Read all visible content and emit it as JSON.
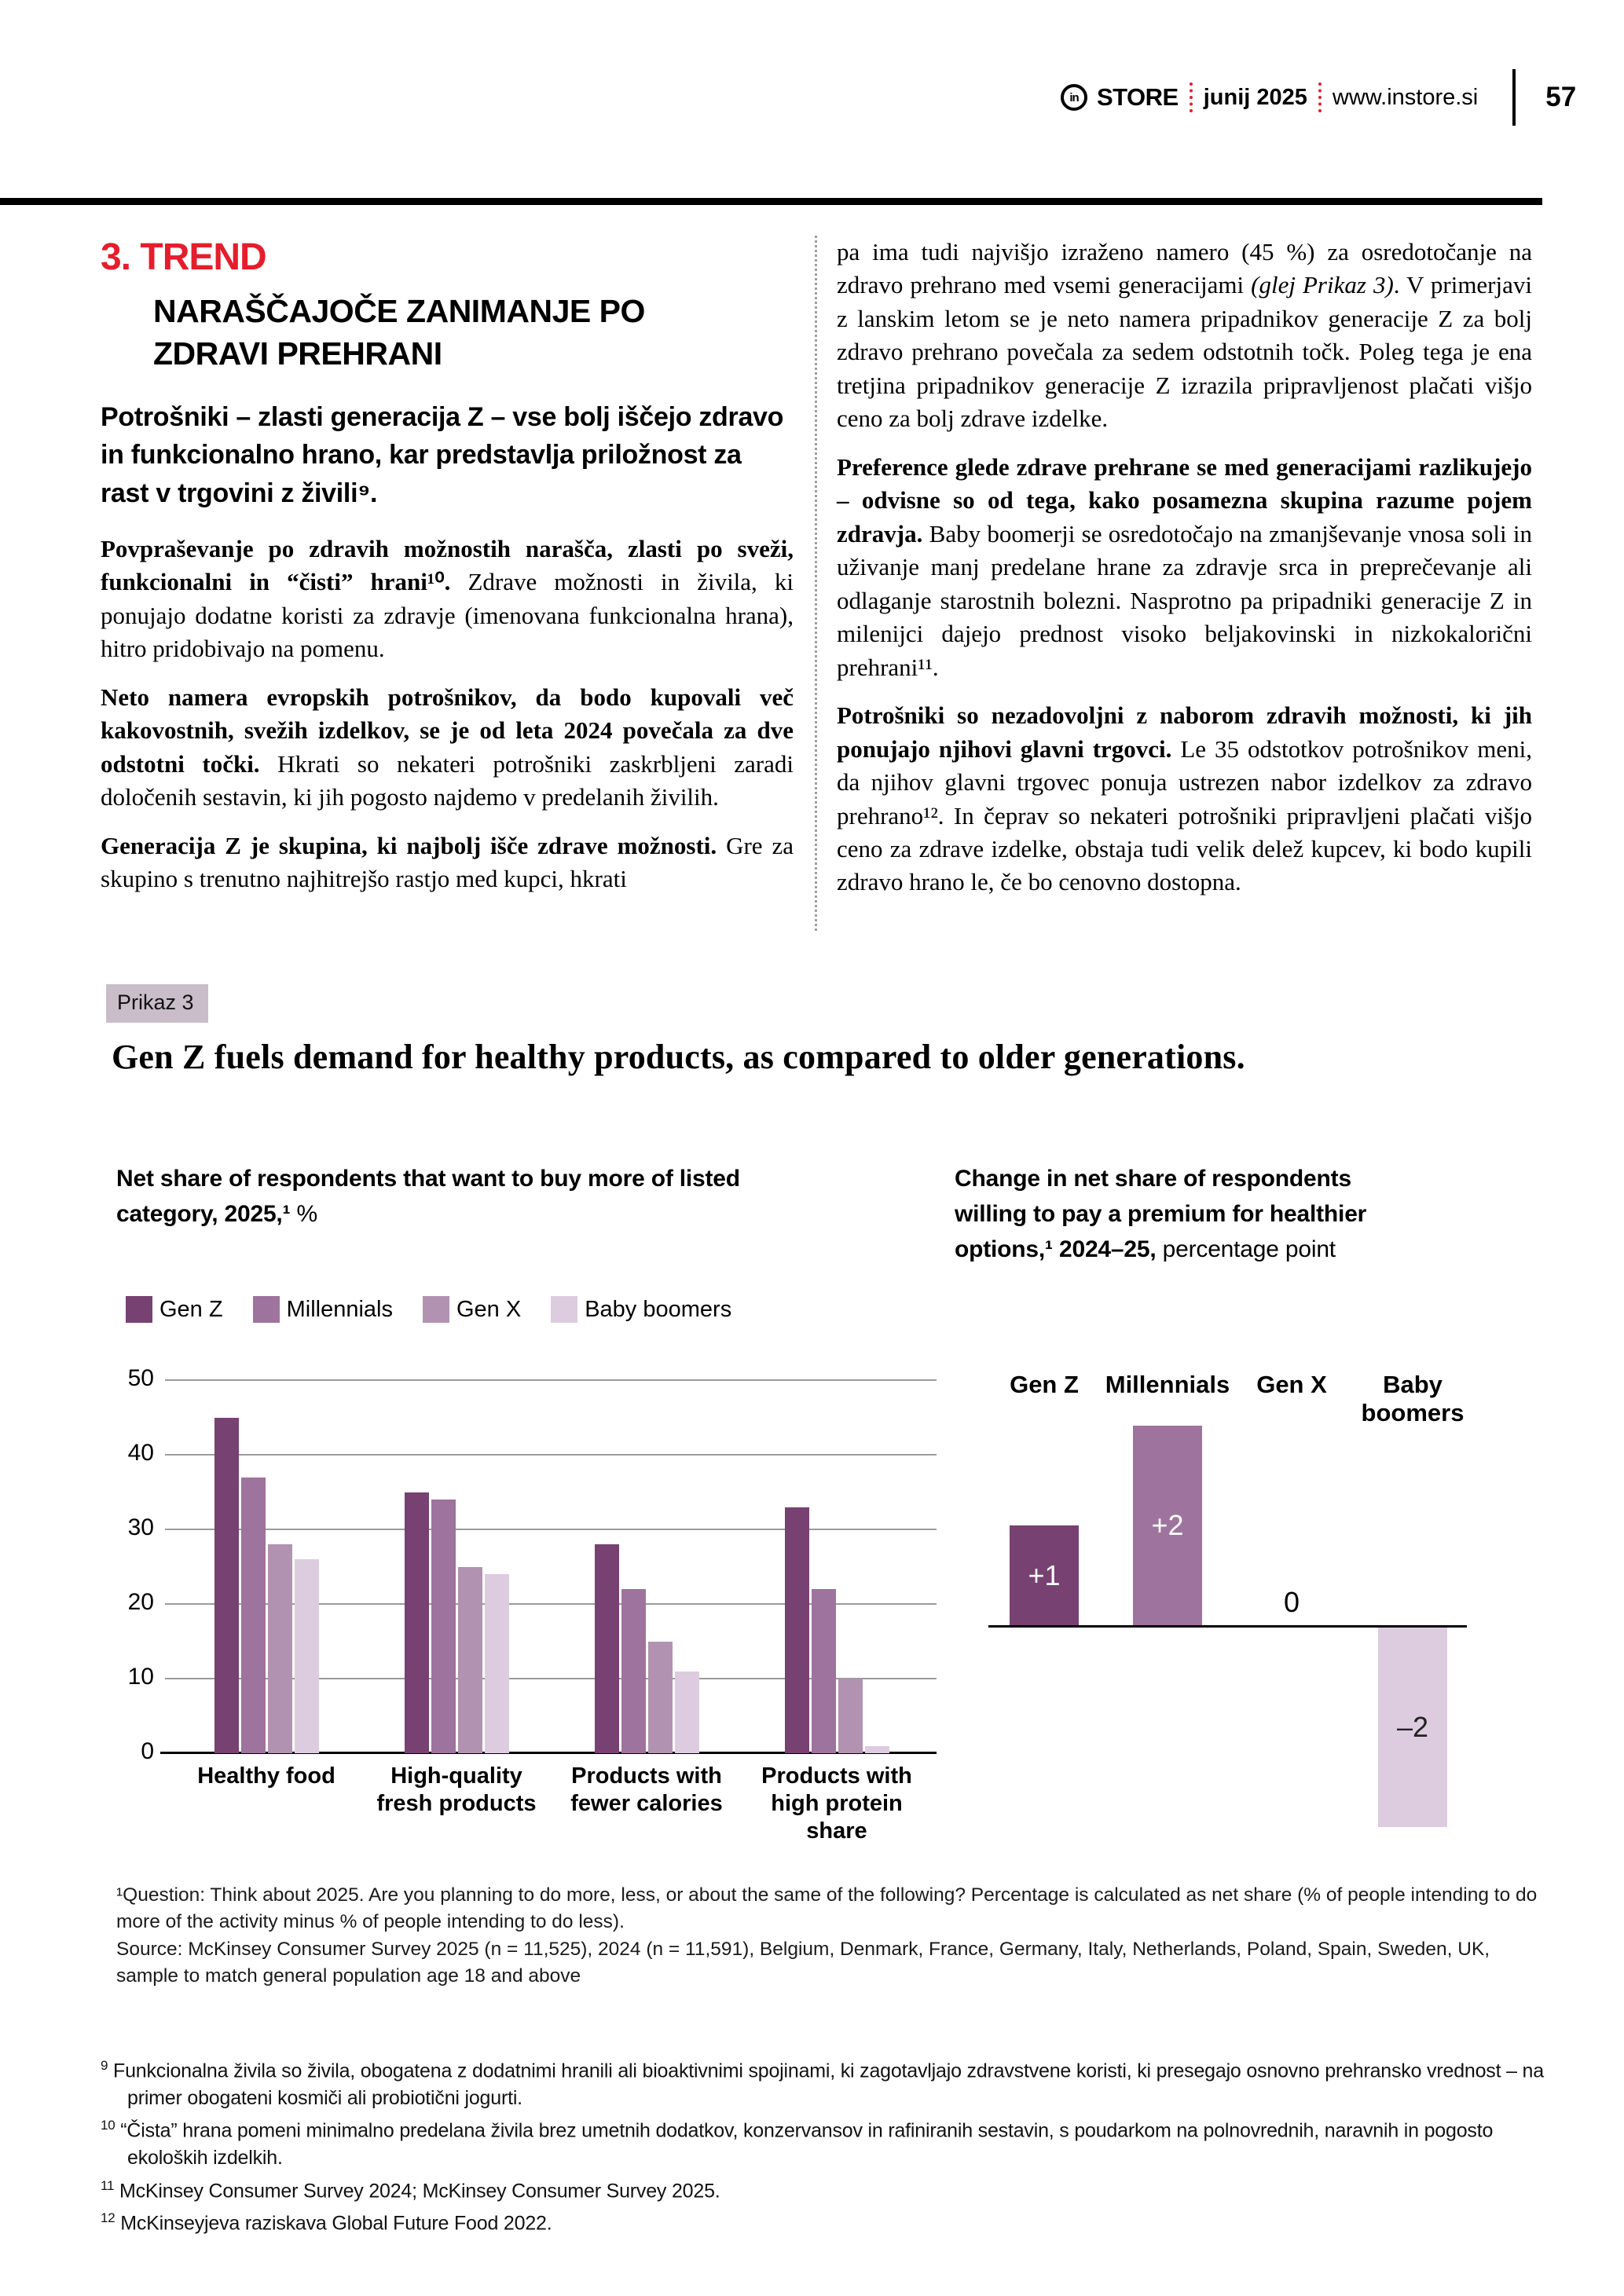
{
  "header": {
    "logo_text": "in",
    "brand": "STORE",
    "issue": "junij 2025",
    "site": "www.instore.si",
    "page_number": "57"
  },
  "article": {
    "kicker_number": "3.",
    "kicker": "TREND",
    "headline": "NARAŠČAJOČE ZANIMANJE PO ZDRAVI PREHRANI",
    "intro": "Potrošniki – zlasti generacija Z – vse bolj iščejo zdravo in funkcionalno hrano, kar predstavlja priložnost za rast v trgovini z živili⁹.",
    "left": [
      {
        "bold": "Povpraševanje po zdravih možnostih narašča, zlasti po sveži, funkcionalni in “čisti” hrani¹⁰.",
        "text": " Zdrave možnosti in živila, ki ponujajo dodatne koristi za zdravje (imenovana funkcionalna hrana), hitro pridobivajo na pomenu."
      },
      {
        "bold": "Neto namera evropskih potrošnikov, da bodo kupovali več kakovostnih, svežih izdelkov, se je od leta 2024 povečala za dve odstotni točki.",
        "text": " Hkrati so nekateri potrošniki zaskrbljeni zaradi določenih sestavin, ki jih pogosto najdemo v predelanih živilih."
      },
      {
        "bold": "Generacija Z je skupina, ki najbolj išče zdrave možnosti.",
        "text": " Gre za skupino s trenutno najhitrejšo rastjo med kupci, hkrati"
      }
    ],
    "right": [
      {
        "pre": "pa ima tudi najvišjo izraženo namero (45 %) za osredotočanje na zdravo prehrano med vsemi generacijami ",
        "italic": "(glej Prikaz 3)",
        "post": ". V primerjavi z lanskim letom se je neto namera pripadnikov generacije Z za bolj zdravo prehrano povečala za sedem odstotnih točk. Poleg tega je ena tretjina pripadnikov generacije Z izrazila pripravljenost plačati višjo ceno za bolj zdrave izdelke."
      },
      {
        "bold": "Preference glede zdrave prehrane se med generacijami razlikujejo – odvisne so od tega, kako posamezna skupina razume pojem zdravja.",
        "text": " Baby boomerji se osredotočajo na zmanjševanje vnosa soli in uživanje manj predelane hrane za zdravje srca in preprečevanje ali odlaganje starostnih bolezni. Nasprotno pa pripadniki generacije Z in milenijci dajejo prednost visoko beljakovinski in nizkokalorični prehrani¹¹."
      },
      {
        "bold": "Potrošniki so nezadovoljni z naborom zdravih možnosti, ki jih ponujajo njihovi glavni trgovci.",
        "text": " Le 35 odstotkov potrošnikov meni, da njihov glavni trgovec ponuja ustrezen nabor izdelkov za zdravo prehrano¹². In čeprav so nekateri potrošniki pripravljeni plačati višjo ceno za zdrave izdelke, obstaja tudi velik delež kupcev, ki bodo kupili zdravo hrano le, če bo cenovno dostopna."
      }
    ]
  },
  "exhibit": {
    "tag": "Prikaz 3",
    "title": "Gen Z fuels demand for healthy products, as compared to older generations.",
    "left_subtitle_bold": "Net share of respondents that want to buy more of listed category, 2025,¹",
    "left_subtitle_rest": " %",
    "right_subtitle_bold": "Change in net share of respondents willing to pay a premium for healthier options,¹ 2024–25,",
    "right_subtitle_rest": " percentage point",
    "footnote_question": "¹Question: Think about 2025. Are you planning to do more, less, or about the same of the following? Percentage is calculated as net share (% of people intending to do more of the activity minus % of people intending to do less).",
    "footnote_source": "Source: McKinsey Consumer Survey 2025 (n = 11,525), 2024 (n = 11,591), Belgium, Denmark, France, Germany, Italy, Netherlands, Poland, Spain, Sweden, UK, sample to match general population age 18 and above"
  },
  "chart_data": [
    {
      "type": "bar",
      "title": "Net share of respondents that want to buy more of listed category, 2025, %",
      "categories": [
        "Healthy food",
        "High-quality fresh products",
        "Products with fewer calories",
        "Products with high protein share"
      ],
      "series": [
        {
          "name": "Gen Z",
          "color": "#774172",
          "values": [
            45,
            35,
            28,
            33
          ]
        },
        {
          "name": "Millennials",
          "color": "#9e739d",
          "values": [
            37,
            34,
            22,
            22
          ]
        },
        {
          "name": "Gen X",
          "color": "#b292b1",
          "values": [
            28,
            25,
            15,
            10
          ]
        },
        {
          "name": "Baby boomers",
          "color": "#ddccdf",
          "values": [
            26,
            24,
            11,
            1
          ]
        }
      ],
      "ylim": [
        0,
        50
      ],
      "yticks": [
        0,
        10,
        20,
        30,
        40,
        50
      ],
      "grid": true,
      "legend_position": "top"
    },
    {
      "type": "bar",
      "title": "Change in net share of respondents willing to pay a premium for healthier options, 2024–25, percentage point",
      "categories": [
        "Gen Z",
        "Millennials",
        "Gen X",
        "Baby boomers"
      ],
      "values": [
        1,
        2,
        0,
        -2
      ],
      "labels": [
        "+1",
        "+2",
        "0",
        "–2"
      ],
      "colors": [
        "#774172",
        "#9e739d",
        "#b292b1",
        "#ddccdf"
      ],
      "label_colors": [
        "#ffffff",
        "#ffffff",
        "#000000",
        "#222222"
      ]
    }
  ],
  "footnotes": [
    {
      "sup": "9",
      "text": " Funkcionalna živila so živila, obogatena z dodatnimi hranili ali bioaktivnimi spojinami, ki zagotavljajo zdravstvene koristi, ki presegajo osnovno prehransko vrednost – na primer obogateni kosmiči ali probiotični jogurti."
    },
    {
      "sup": "10",
      "text": " “Čista” hrana pomeni minimalno predelana živila brez umetnih dodatkov, konzervansov in rafiniranih sestavin, s poudarkom na polnovrednih, naravnih in pogosto ekoloških izdelkih."
    },
    {
      "sup": "11",
      "text": " McKinsey Consumer Survey 2024; McKinsey Consumer Survey 2025."
    },
    {
      "sup": "12",
      "text": " McKinseyjeva raziskava Global Future Food 2022."
    }
  ],
  "colors": {
    "accent_red": "#e51d2c",
    "gen_z": "#774172",
    "millennials": "#9e739d",
    "gen_x": "#b292b1",
    "baby_boomers": "#ddccdf",
    "tag_background": "#c9bdca",
    "grid_line": "#9b9b9b"
  }
}
